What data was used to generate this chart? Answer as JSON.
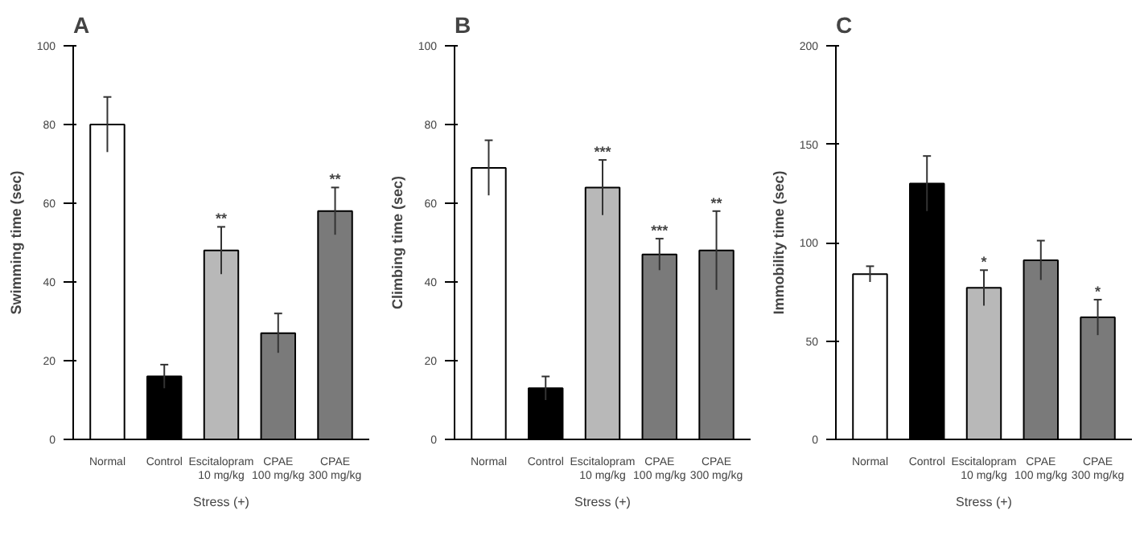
{
  "chart_data": [
    {
      "type": "bar",
      "title": "A",
      "ylabel": "Swimming time (sec)",
      "categories": [
        "Normal",
        "Control",
        "Escitalopram\n10 mg/kg",
        "CPAE\n100 mg/kg",
        "CPAE\n300 mg/kg"
      ],
      "values": [
        80,
        16,
        48,
        27,
        58
      ],
      "errors": [
        7,
        3,
        6,
        5,
        6
      ],
      "colors": [
        "#ffffff",
        "#000000",
        "#b8b8b8",
        "#7a7a7a",
        "#7a7a7a"
      ],
      "ylim": [
        0,
        100
      ],
      "yticks": [
        0,
        20,
        40,
        60,
        80,
        100
      ],
      "grid": false,
      "annotations": [
        {
          "text": "**",
          "x": "Escitalopram\n10 mg/kg",
          "y": 54
        },
        {
          "text": "**",
          "x": "CPAE\n300 mg/kg",
          "y": 64
        },
        "Stress (+)"
      ]
    },
    {
      "type": "bar",
      "title": "B",
      "ylabel": "Climbing time (sec)",
      "categories": [
        "Normal",
        "Control",
        "Escitalopram\n10 mg/kg",
        "CPAE\n100 mg/kg",
        "CPAE\n300 mg/kg"
      ],
      "values": [
        69,
        13,
        64,
        47,
        48
      ],
      "errors": [
        7,
        3,
        7,
        4,
        10
      ],
      "colors": [
        "#ffffff",
        "#000000",
        "#b8b8b8",
        "#7a7a7a",
        "#7a7a7a"
      ],
      "ylim": [
        0,
        100
      ],
      "yticks": [
        0,
        20,
        40,
        60,
        80,
        100
      ],
      "grid": false,
      "annotations": [
        {
          "text": "***",
          "x": "Escitalopram\n10 mg/kg",
          "y": 71
        },
        {
          "text": "***",
          "x": "CPAE\n100 mg/kg",
          "y": 51
        },
        {
          "text": "**",
          "x": "CPAE\n300 mg/kg",
          "y": 58
        },
        "Stress (+)"
      ]
    },
    {
      "type": "bar",
      "title": "C",
      "ylabel": "Immobility time (sec)",
      "categories": [
        "Normal",
        "Control",
        "Escitalopram\n10 mg/kg",
        "CPAE\n100 mg/kg",
        "CPAE\n300 mg/kg"
      ],
      "values": [
        84,
        130,
        77,
        91,
        62
      ],
      "errors": [
        4,
        14,
        9,
        10,
        9
      ],
      "colors": [
        "#ffffff",
        "#000000",
        "#b8b8b8",
        "#7a7a7a",
        "#7a7a7a"
      ],
      "ylim": [
        0,
        200
      ],
      "yticks": [
        0,
        50,
        100,
        150,
        200
      ],
      "grid": false,
      "annotations": [
        {
          "text": "*",
          "x": "Escitalopram\n10 mg/kg",
          "y": 86
        },
        {
          "text": "*",
          "x": "CPAE\n300 mg/kg",
          "y": 71
        },
        "Stress (+)"
      ]
    }
  ]
}
